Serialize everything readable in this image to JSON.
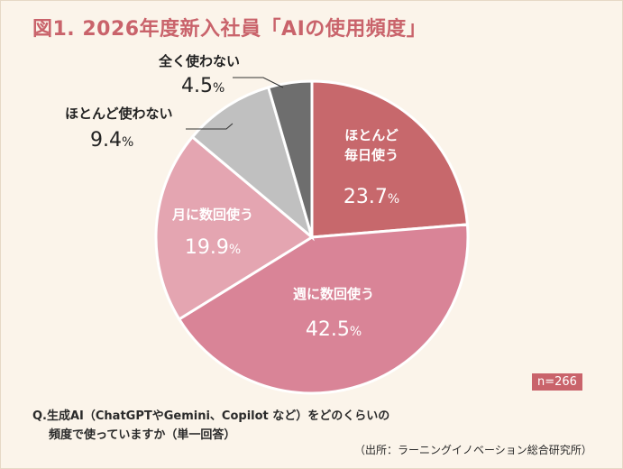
{
  "title": "図1. 2026年度新入社員「AIの使用頻度」",
  "sample_size": "n=266",
  "question": {
    "line1": "Q.生成AI（ChatGPTやGemini、Copilot など）をどのくらいの",
    "line2": "頻度で使っていますか（単一回答）"
  },
  "source": "（出所：ラーニングイノベーション総合研究所）",
  "colors": {
    "daily": "#c7686c",
    "weekly": "#d98497",
    "monthly": "#e4a5b1",
    "rarely": "#c0c0c0",
    "never": "#6e6e6e",
    "accent": "#c9636b"
  },
  "chart_data": {
    "type": "pie",
    "title": "図1. 2026年度新入社員「AIの使用頻度」",
    "unit": "%",
    "start": "12 o'clock",
    "direction": "clockwise",
    "slices": [
      {
        "label": "ほとんど 毎日使う",
        "label_lines": [
          "ほとんど",
          "毎日使う"
        ],
        "value": 23.7,
        "value_text": "23.7",
        "color": "#c7686c",
        "label_position": "inside"
      },
      {
        "label": "週に数回使う",
        "label_lines": [
          "週に数回使う"
        ],
        "value": 42.5,
        "value_text": "42.5",
        "color": "#d98497",
        "label_position": "inside"
      },
      {
        "label": "月に数回使う",
        "label_lines": [
          "月に数回使う"
        ],
        "value": 19.9,
        "value_text": "19.9",
        "color": "#e4a5b1",
        "label_position": "inside"
      },
      {
        "label": "ほとんど使わない",
        "label_lines": [
          "ほとんど使わない"
        ],
        "value": 9.4,
        "value_text": "9.4",
        "color": "#c0c0c0",
        "label_position": "outside"
      },
      {
        "label": "全く使わない",
        "label_lines": [
          "全く使わない"
        ],
        "value": 4.5,
        "value_text": "4.5",
        "color": "#6e6e6e",
        "label_position": "outside"
      }
    ]
  }
}
